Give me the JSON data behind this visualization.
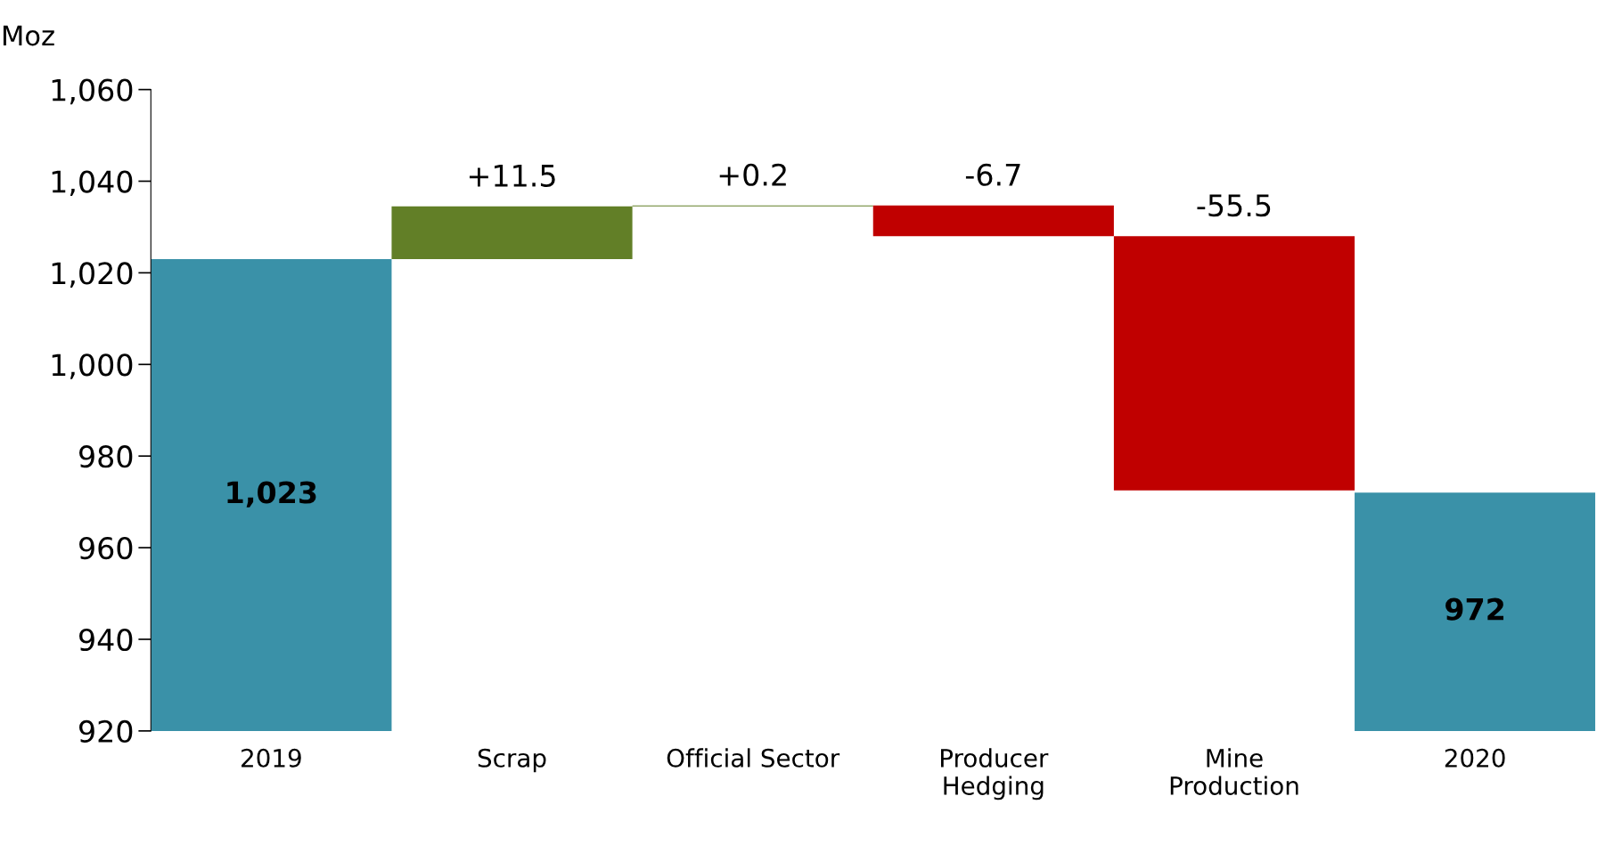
{
  "chart_data": {
    "type": "bar",
    "ylabel": "Moz",
    "categories": [
      "2019",
      "Scrap",
      "Official Sector",
      "Producer\nHedging",
      "Mine\nProduction",
      "2020"
    ],
    "base": [
      920,
      1023,
      1034.5,
      1034.7,
      1028,
      920
    ],
    "values": [
      103,
      11.5,
      0.2,
      -6.7,
      -55.5,
      52
    ],
    "colors": [
      "#3a91a8",
      "#627f27",
      "#627f27",
      "#c00000",
      "#c00000",
      "#3a91a8"
    ],
    "value_labels": [
      "1,023",
      "+11.5",
      "+0.2",
      "-6.7",
      "-55.5",
      "972"
    ],
    "ylim": [
      920,
      1060
    ],
    "yticks": [
      920,
      940,
      960,
      980,
      {
        "value": 1000,
        "label": "1,000"
      },
      {
        "value": 1020,
        "label": "1,020"
      },
      {
        "value": 1040,
        "label": "1,040"
      },
      {
        "value": 1060,
        "label": "1,060"
      }
    ],
    "grid": false,
    "legend": false
  }
}
